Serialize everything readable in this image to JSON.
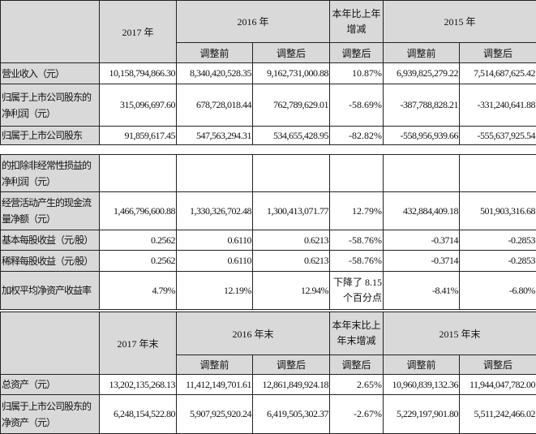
{
  "table1": {
    "header": {
      "y2017": "2017 年",
      "y2016": "2016 年",
      "change": "本年比上年增减",
      "y2015": "2015 年",
      "before": "调整前",
      "after": "调整后",
      "change_after": "调整后"
    },
    "rows": [
      {
        "label": "营业收入（元）",
        "v": [
          "10,158,794,866.30",
          "8,340,420,528.35",
          "9,162,731,000.88",
          "10.87%",
          "6,939,825,279.22",
          "7,514,687,625.42"
        ]
      },
      {
        "label": "归属于上市公司股东的净利润（元）",
        "v": [
          "315,096,697.60",
          "678,728,018.44",
          "762,789,629.01",
          "-58.69%",
          "-387,788,828.21",
          "-331,240,641.88"
        ]
      },
      {
        "label": "归属于上市公司股东",
        "v": [
          "91,859,617.45",
          "547,563,294.31",
          "534,655,428.95",
          "-82.82%",
          "-558,956,939.66",
          "-555,637,925.54"
        ]
      }
    ]
  },
  "table2": {
    "rows": [
      {
        "label": "的扣除非经常性损益的净利润（元）",
        "v": [
          "",
          "",
          "",
          "",
          "",
          ""
        ]
      },
      {
        "label": "经营活动产生的现金流量净额（元）",
        "v": [
          "1,466,796,600.88",
          "1,330,326,702.48",
          "1,300,413,071.77",
          "12.79%",
          "432,884,409.18",
          "501,903,316.68"
        ]
      },
      {
        "label": "基本每股收益（元/股）",
        "v": [
          "0.2562",
          "0.6110",
          "0.6213",
          "-58.76%",
          "-0.3714",
          "-0.2853"
        ]
      },
      {
        "label": "稀释每股收益（元/股）",
        "v": [
          "0.2562",
          "0.6110",
          "0.6213",
          "-58.76%",
          "-0.3714",
          "-0.2853"
        ]
      },
      {
        "label": "加权平均净资产收益率",
        "v": [
          "4.79%",
          "12.19%",
          "12.94%",
          "下降了 8.15 个百分点",
          "-8.41%",
          "-6.80%"
        ]
      }
    ]
  },
  "table3": {
    "header": {
      "y2017": "2017 年末",
      "y2016": "2016 年末",
      "change": "本年末比上年末增减",
      "y2015": "2015 年末",
      "before": "调整前",
      "after": "调整后",
      "change_after": "调整后"
    },
    "rows": [
      {
        "label": "总资产（元）",
        "v": [
          "13,202,135,268.13",
          "11,412,149,701.61",
          "12,861,849,924.18",
          "2.65%",
          "10,960,839,132.36",
          "11,944,047,782.00"
        ]
      },
      {
        "label": "归属于上市公司股东的净资产（元）",
        "v": [
          "6,248,154,522.80",
          "5,907,925,920.24",
          "6,419,505,302.37",
          "-2.67%",
          "5,229,197,901.80",
          "5,511,242,466.02"
        ]
      }
    ]
  }
}
